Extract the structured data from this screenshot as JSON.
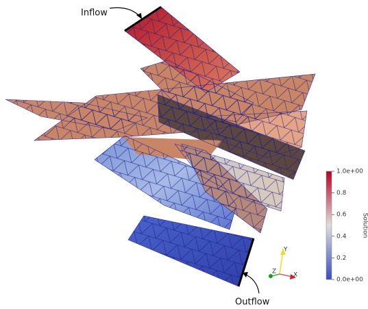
{
  "annotations": {
    "inflow": "Inflow",
    "outflow": "Outflow"
  },
  "colorbar": {
    "title": "Solution",
    "range": [
      0,
      1
    ],
    "ticks": [
      {
        "value": 1,
        "label": "1.0e+00"
      },
      0.8,
      0.6,
      0.4,
      0.2,
      {
        "value": 0,
        "label": "0.0e+00"
      }
    ]
  },
  "axes_triad": {
    "x": "X",
    "y": "Y",
    "z": "Z"
  }
}
